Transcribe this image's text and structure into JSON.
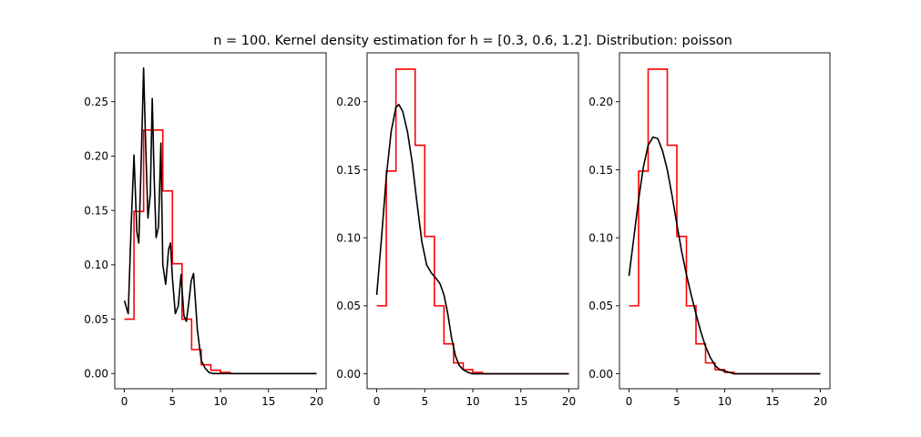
{
  "figure": {
    "title": "n = 100. Kernel density estimation for h = [0.3, 0.6, 1.2]. Distribution: poisson"
  },
  "colors": {
    "histogram": "#ff0000",
    "kde": "#000000"
  },
  "chart_data": [
    {
      "type": "line",
      "subplot": 1,
      "xlim": [
        -1,
        21
      ],
      "ylim": [
        -0.014,
        0.295
      ],
      "xticks": [
        0,
        5,
        10,
        15,
        20
      ],
      "yticks": [
        0.0,
        0.05,
        0.1,
        0.15,
        0.2,
        0.25
      ],
      "ytick_labels": [
        "0.00",
        "0.05",
        "0.10",
        "0.15",
        "0.20",
        "0.25"
      ],
      "grid": false,
      "series": [
        {
          "style": "step",
          "x": [
            0,
            1,
            1,
            2,
            2,
            3,
            3,
            4,
            4,
            5,
            5,
            6,
            6,
            7,
            7,
            8,
            8,
            9,
            9,
            10,
            10,
            11,
            11,
            20
          ],
          "y": [
            0.05,
            0.05,
            0.149,
            0.149,
            0.224,
            0.224,
            0.224,
            0.224,
            0.168,
            0.168,
            0.101,
            0.101,
            0.05,
            0.05,
            0.022,
            0.022,
            0.008,
            0.008,
            0.003,
            0.003,
            0.001,
            0.001,
            0.0,
            0.0
          ]
        },
        {
          "style": "line",
          "x": [
            0,
            0.4,
            0.7,
            1.0,
            1.3,
            1.5,
            1.75,
            2.0,
            2.2,
            2.45,
            2.7,
            2.9,
            3.1,
            3.3,
            3.55,
            3.8,
            4.0,
            4.3,
            4.6,
            4.8,
            5.0,
            5.3,
            5.6,
            5.9,
            6.2,
            6.45,
            6.7,
            6.95,
            7.2,
            7.6,
            8.0,
            8.4,
            8.8,
            9.2,
            10.0,
            11.0,
            14.0,
            20.0
          ],
          "y": [
            0.067,
            0.055,
            0.135,
            0.201,
            0.13,
            0.12,
            0.195,
            0.281,
            0.215,
            0.143,
            0.165,
            0.253,
            0.18,
            0.125,
            0.135,
            0.212,
            0.1,
            0.082,
            0.114,
            0.12,
            0.088,
            0.055,
            0.062,
            0.091,
            0.053,
            0.048,
            0.065,
            0.085,
            0.092,
            0.04,
            0.012,
            0.005,
            0.001,
            0.0,
            0.0,
            0.0,
            0.0,
            0.0
          ]
        }
      ]
    },
    {
      "type": "line",
      "subplot": 2,
      "xlim": [
        -1,
        21
      ],
      "ylim": [
        -0.011,
        0.236
      ],
      "xticks": [
        0,
        5,
        10,
        15,
        20
      ],
      "yticks": [
        0.0,
        0.05,
        0.1,
        0.15,
        0.2
      ],
      "ytick_labels": [
        "0.00",
        "0.05",
        "0.10",
        "0.15",
        "0.20"
      ],
      "grid": false,
      "series": [
        {
          "style": "step",
          "x": [
            0,
            1,
            1,
            2,
            2,
            3,
            3,
            4,
            4,
            5,
            5,
            6,
            6,
            7,
            7,
            8,
            8,
            9,
            9,
            10,
            10,
            11,
            11,
            20
          ],
          "y": [
            0.05,
            0.05,
            0.149,
            0.149,
            0.224,
            0.224,
            0.224,
            0.224,
            0.168,
            0.168,
            0.101,
            0.101,
            0.05,
            0.05,
            0.022,
            0.022,
            0.008,
            0.008,
            0.003,
            0.003,
            0.001,
            0.001,
            0.0,
            0.0
          ]
        },
        {
          "style": "line",
          "x": [
            0,
            0.5,
            1.0,
            1.5,
            2.0,
            2.3,
            2.7,
            3.2,
            3.7,
            4.2,
            4.7,
            5.2,
            5.7,
            6.2,
            6.6,
            7.0,
            7.4,
            7.8,
            8.2,
            8.6,
            9.0,
            9.5,
            10.0,
            11.0,
            12.0,
            14.0,
            20.0
          ],
          "y": [
            0.058,
            0.1,
            0.145,
            0.178,
            0.196,
            0.198,
            0.193,
            0.178,
            0.155,
            0.125,
            0.097,
            0.08,
            0.074,
            0.07,
            0.066,
            0.058,
            0.044,
            0.026,
            0.013,
            0.006,
            0.003,
            0.001,
            0.0,
            0.0,
            0.0,
            0.0,
            0.0
          ]
        }
      ]
    },
    {
      "type": "line",
      "subplot": 3,
      "xlim": [
        -1,
        21
      ],
      "ylim": [
        -0.011,
        0.236
      ],
      "xticks": [
        0,
        5,
        10,
        15,
        20
      ],
      "yticks": [
        0.0,
        0.05,
        0.1,
        0.15,
        0.2
      ],
      "ytick_labels": [
        "0.00",
        "0.05",
        "0.10",
        "0.15",
        "0.20"
      ],
      "grid": false,
      "series": [
        {
          "style": "step",
          "x": [
            0,
            1,
            1,
            2,
            2,
            3,
            3,
            4,
            4,
            5,
            5,
            6,
            6,
            7,
            7,
            8,
            8,
            9,
            9,
            10,
            10,
            11,
            11,
            20
          ],
          "y": [
            0.05,
            0.05,
            0.149,
            0.149,
            0.224,
            0.224,
            0.224,
            0.224,
            0.168,
            0.168,
            0.101,
            0.101,
            0.05,
            0.05,
            0.022,
            0.022,
            0.008,
            0.008,
            0.003,
            0.003,
            0.001,
            0.001,
            0.0,
            0.0
          ]
        },
        {
          "style": "line",
          "x": [
            0,
            0.5,
            1.0,
            1.5,
            2.0,
            2.5,
            3.0,
            3.5,
            4.0,
            4.5,
            5.0,
            5.5,
            6.0,
            6.5,
            7.0,
            7.5,
            8.0,
            8.5,
            9.0,
            9.5,
            10.0,
            10.5,
            11.0,
            12.0,
            13.0,
            15.0,
            20.0
          ],
          "y": [
            0.072,
            0.1,
            0.128,
            0.152,
            0.168,
            0.174,
            0.173,
            0.164,
            0.15,
            0.131,
            0.11,
            0.09,
            0.073,
            0.058,
            0.044,
            0.031,
            0.02,
            0.012,
            0.006,
            0.003,
            0.002,
            0.001,
            0.0,
            0.0,
            0.0,
            0.0,
            0.0
          ]
        }
      ]
    }
  ]
}
